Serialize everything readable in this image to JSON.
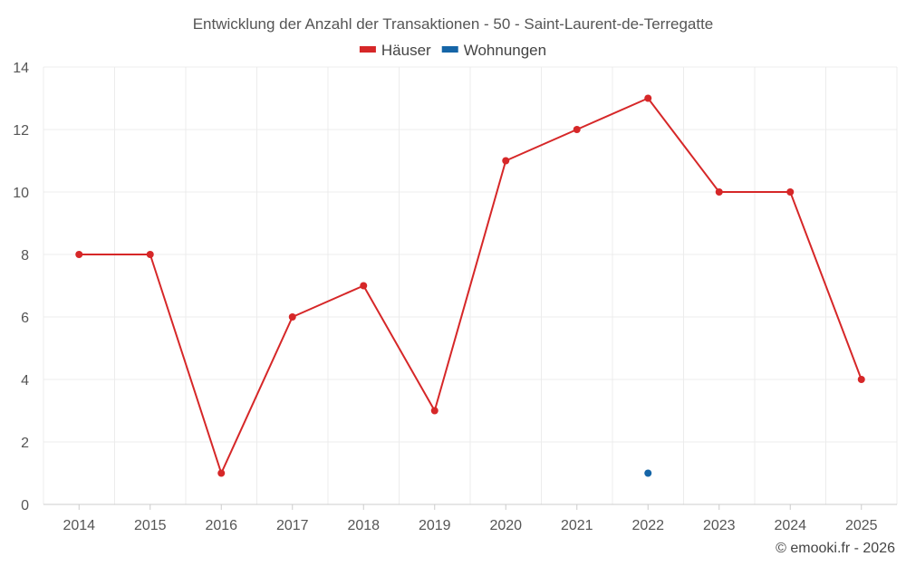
{
  "chart_data": {
    "type": "line",
    "title": "Entwicklung der Anzahl der Transaktionen - 50 - Saint-Laurent-de-Terregatte",
    "categories": [
      "2014",
      "2015",
      "2016",
      "2017",
      "2018",
      "2019",
      "2020",
      "2021",
      "2022",
      "2023",
      "2024",
      "2025"
    ],
    "series": [
      {
        "name": "Häuser",
        "color": "#d62728",
        "values": [
          8,
          8,
          1,
          6,
          7,
          3,
          11,
          12,
          13,
          10,
          10,
          4
        ]
      },
      {
        "name": "Wohnungen",
        "color": "#1565a7",
        "values": [
          null,
          null,
          null,
          null,
          null,
          null,
          null,
          null,
          1,
          null,
          null,
          null
        ]
      }
    ],
    "ylim": [
      0,
      14
    ],
    "yticks": [
      0,
      2,
      4,
      6,
      8,
      10,
      12,
      14
    ],
    "xlabel": "",
    "ylabel": "",
    "grid": true,
    "legend": "top-center"
  },
  "copyright": "© emooki.fr - 2026"
}
